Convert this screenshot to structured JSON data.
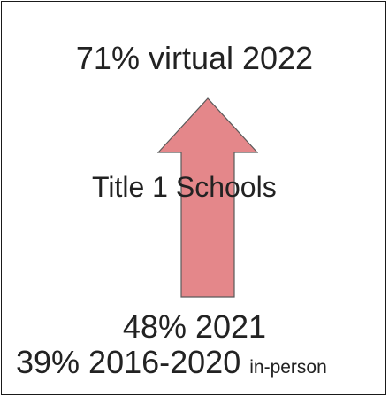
{
  "diagram": {
    "top_label": "71% virtual 2022",
    "center_label": "Title 1 Schools",
    "bottom_line1": "48% 2021",
    "bottom_line2_main": "39% 2016-2020",
    "bottom_line2_suffix": "in-person",
    "arrow_direction": "up",
    "colors": {
      "arrow_fill": "#e4878a",
      "arrow_stroke": "#5a5a5a",
      "text": "#222222",
      "border": "#1a1a1a"
    }
  }
}
